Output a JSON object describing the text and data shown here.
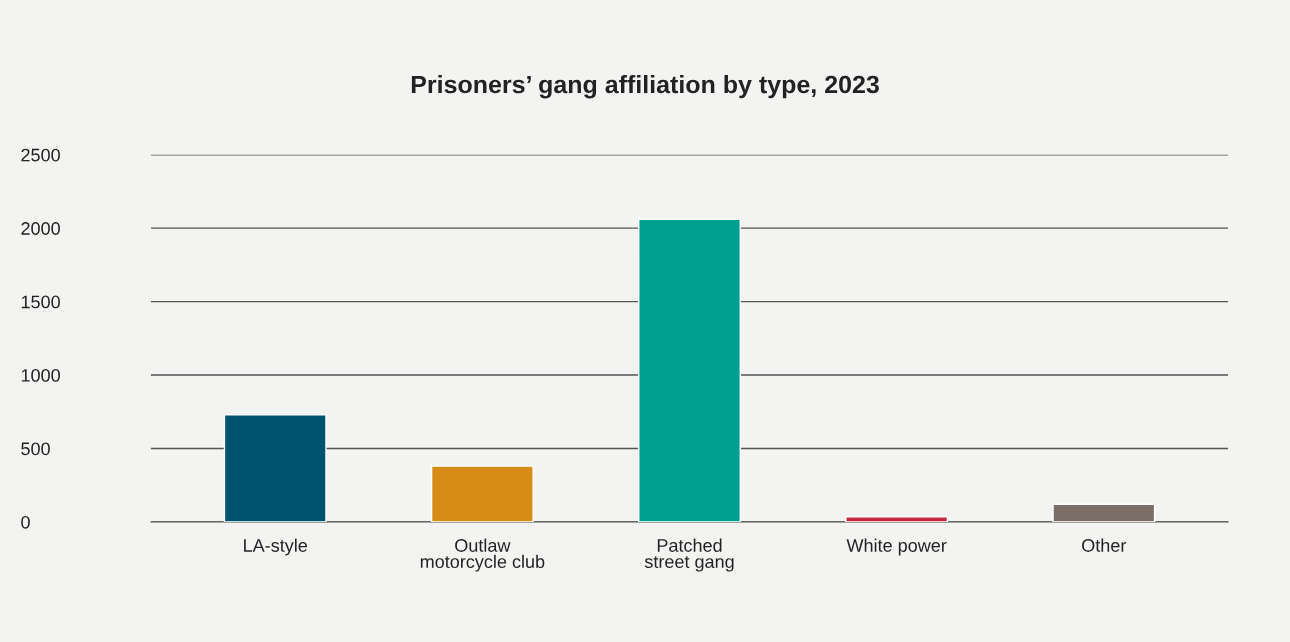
{
  "chart_data": {
    "type": "bar",
    "title": "Prisoners’ gang affiliation by type, 2023",
    "categories": [
      "LA-style",
      "Outlaw\nmotorcycle club",
      "Patched\nstreet gang",
      "White power",
      "Other"
    ],
    "values": [
      730,
      380,
      2060,
      35,
      120
    ],
    "colors": [
      "#00536e",
      "#d98b17",
      "#00a090",
      "#c8283e",
      "#7a6e66"
    ],
    "ylim": [
      0,
      2500
    ],
    "yticks": [
      0,
      500,
      1000,
      1500,
      2000,
      2500
    ],
    "grid": "y"
  }
}
